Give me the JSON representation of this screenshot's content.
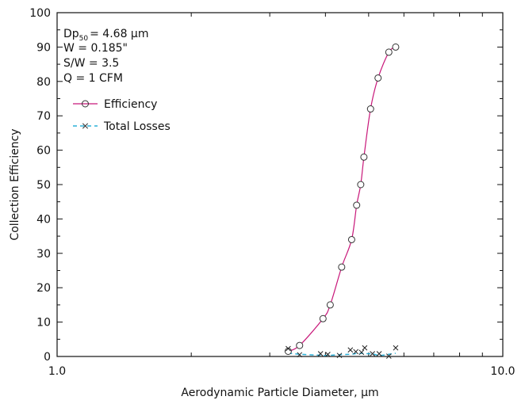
{
  "chart_data": {
    "type": "scatter",
    "title": "",
    "xlabel": "Aerodynamic Particle Diameter, µm",
    "ylabel": "Collection Efficiency",
    "x_scale": "log",
    "xlim": [
      1.0,
      10.0
    ],
    "ylim": [
      0,
      100
    ],
    "x_ticks": [
      1.0,
      10.0
    ],
    "x_tick_labels": [
      "1.0",
      "10.0"
    ],
    "y_ticks": [
      0,
      10,
      20,
      30,
      40,
      50,
      60,
      70,
      80,
      90,
      100
    ],
    "y_tick_labels": [
      "0",
      "10",
      "20",
      "30",
      "40",
      "50",
      "60",
      "70",
      "80",
      "90",
      "100"
    ],
    "grid": false,
    "legend_position": "top-left",
    "annotations": {
      "dp_main": "Dp",
      "dp_sub": "50",
      "dp_value": "= 4.68 µm",
      "line2": "W = 0.185\"",
      "line3": "S/W = 3.5",
      "line4": "Q = 1 CFM"
    },
    "series": [
      {
        "name": "Efficiency",
        "color": "#c8187a",
        "marker": "circle",
        "points": [
          [
            3.3,
            1.5
          ],
          [
            3.5,
            3.2
          ],
          [
            3.95,
            11
          ],
          [
            4.1,
            15
          ],
          [
            4.35,
            26
          ],
          [
            4.58,
            34
          ],
          [
            4.7,
            44
          ],
          [
            4.8,
            50
          ],
          [
            4.88,
            58
          ],
          [
            5.05,
            72
          ],
          [
            5.25,
            81
          ],
          [
            5.55,
            88.5
          ],
          [
            5.75,
            90
          ]
        ]
      },
      {
        "name": "Total Losses",
        "color": "#2bb0d8",
        "marker": "x",
        "points": [
          [
            3.3,
            2.3
          ],
          [
            3.5,
            0.5
          ],
          [
            3.9,
            0.8
          ],
          [
            4.05,
            0.6
          ],
          [
            4.3,
            0.3
          ],
          [
            4.55,
            1.9
          ],
          [
            4.68,
            1.4
          ],
          [
            4.82,
            1.2
          ],
          [
            4.9,
            2.5
          ],
          [
            5.1,
            0.8
          ],
          [
            5.28,
            0.8
          ],
          [
            5.55,
            0.1
          ],
          [
            5.75,
            2.5
          ]
        ]
      }
    ]
  }
}
